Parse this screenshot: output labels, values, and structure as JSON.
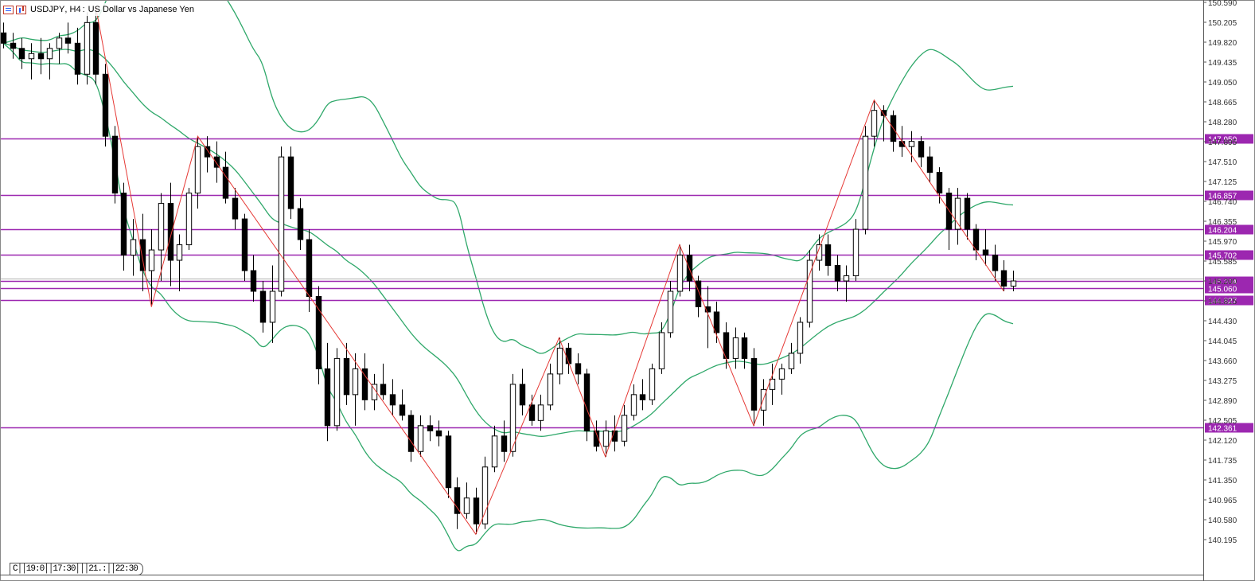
{
  "window": {
    "symbol": "USDJPY",
    "timeframe": "H4",
    "description": "US Dollar vs Japanese Yen",
    "time_readout": "C││19:0││17:30│││21.:││22:30"
  },
  "colors": {
    "background": "#ffffff",
    "bull_candle": "#ffffff",
    "bear_candle": "#000000",
    "bollinger": "#2fa86a",
    "level_line": "#9c27b0",
    "zigzag": "#e53935",
    "current_price_line": "#b0b0b0"
  },
  "icons": [
    "list-icon",
    "chart-icon"
  ],
  "chart_data": {
    "type": "candlestick",
    "title": "USDJPY, H4: US Dollar vs Japanese Yen",
    "ylim": [
      140.0,
      150.6
    ],
    "y_ticks": [
      "150.590",
      "150.205",
      "149.820",
      "149.435",
      "149.050",
      "148.665",
      "148.280",
      "147.895",
      "147.510",
      "147.125",
      "146.740",
      "146.355",
      "145.970",
      "145.585",
      "145.200",
      "144.815",
      "144.430",
      "144.045",
      "143.660",
      "143.275",
      "142.890",
      "142.505",
      "142.120",
      "141.735",
      "141.350",
      "140.965",
      "140.580",
      "140.195"
    ],
    "horizontal_levels": [
      "147.950",
      "146.857",
      "146.204",
      "145.702",
      "145.204",
      "145.060",
      "144.827",
      "142.361"
    ],
    "current_price": "145.204",
    "grid": false,
    "candles_approx": [
      {
        "o": 150.0,
        "h": 150.2,
        "l": 149.7,
        "c": 149.8
      },
      {
        "o": 149.8,
        "h": 150.0,
        "l": 149.5,
        "c": 149.7
      },
      {
        "o": 149.7,
        "h": 149.9,
        "l": 149.3,
        "c": 149.5
      },
      {
        "o": 149.5,
        "h": 149.8,
        "l": 149.1,
        "c": 149.6
      },
      {
        "o": 149.6,
        "h": 149.9,
        "l": 149.2,
        "c": 149.5
      },
      {
        "o": 149.5,
        "h": 149.8,
        "l": 149.1,
        "c": 149.7
      },
      {
        "o": 149.7,
        "h": 150.0,
        "l": 149.4,
        "c": 149.9
      },
      {
        "o": 149.9,
        "h": 150.2,
        "l": 149.6,
        "c": 149.8
      },
      {
        "o": 149.8,
        "h": 150.1,
        "l": 149.0,
        "c": 149.2
      },
      {
        "o": 149.2,
        "h": 150.4,
        "l": 149.0,
        "c": 150.2
      },
      {
        "o": 150.2,
        "h": 150.5,
        "l": 149.0,
        "c": 149.2
      },
      {
        "o": 149.2,
        "h": 149.4,
        "l": 147.8,
        "c": 148.0
      },
      {
        "o": 148.0,
        "h": 148.2,
        "l": 146.7,
        "c": 146.9
      },
      {
        "o": 146.9,
        "h": 147.1,
        "l": 145.4,
        "c": 145.7
      },
      {
        "o": 145.7,
        "h": 146.4,
        "l": 145.3,
        "c": 146.0
      },
      {
        "o": 146.0,
        "h": 146.5,
        "l": 145.0,
        "c": 145.4
      },
      {
        "o": 145.4,
        "h": 146.2,
        "l": 144.7,
        "c": 145.8
      },
      {
        "o": 145.8,
        "h": 146.9,
        "l": 145.2,
        "c": 146.7
      },
      {
        "o": 146.7,
        "h": 147.1,
        "l": 145.1,
        "c": 145.6
      },
      {
        "o": 145.6,
        "h": 146.1,
        "l": 145.0,
        "c": 145.9
      },
      {
        "o": 145.9,
        "h": 147.0,
        "l": 145.8,
        "c": 146.9
      },
      {
        "o": 146.9,
        "h": 148.0,
        "l": 146.6,
        "c": 147.8
      },
      {
        "o": 147.8,
        "h": 148.0,
        "l": 147.3,
        "c": 147.6
      },
      {
        "o": 147.6,
        "h": 147.9,
        "l": 147.1,
        "c": 147.4
      },
      {
        "o": 147.4,
        "h": 147.7,
        "l": 146.7,
        "c": 146.8
      },
      {
        "o": 146.8,
        "h": 147.0,
        "l": 146.2,
        "c": 146.4
      },
      {
        "o": 146.4,
        "h": 146.5,
        "l": 145.2,
        "c": 145.4
      },
      {
        "o": 145.4,
        "h": 145.7,
        "l": 144.8,
        "c": 145.0
      },
      {
        "o": 145.0,
        "h": 145.2,
        "l": 144.2,
        "c": 144.4
      },
      {
        "o": 144.4,
        "h": 145.5,
        "l": 144.0,
        "c": 145.0
      },
      {
        "o": 145.0,
        "h": 147.8,
        "l": 144.9,
        "c": 147.6
      },
      {
        "o": 147.6,
        "h": 147.8,
        "l": 146.4,
        "c": 146.6
      },
      {
        "o": 146.6,
        "h": 146.8,
        "l": 145.8,
        "c": 146.0
      },
      {
        "o": 146.0,
        "h": 146.2,
        "l": 144.6,
        "c": 144.9
      },
      {
        "o": 144.9,
        "h": 145.1,
        "l": 143.2,
        "c": 143.5
      },
      {
        "o": 143.5,
        "h": 144.0,
        "l": 142.1,
        "c": 142.4
      },
      {
        "o": 142.4,
        "h": 143.9,
        "l": 142.3,
        "c": 143.7
      },
      {
        "o": 143.7,
        "h": 144.0,
        "l": 142.8,
        "c": 143.0
      },
      {
        "o": 143.0,
        "h": 143.8,
        "l": 142.4,
        "c": 143.5
      },
      {
        "o": 143.5,
        "h": 143.8,
        "l": 142.7,
        "c": 142.9
      },
      {
        "o": 142.9,
        "h": 143.4,
        "l": 142.7,
        "c": 143.2
      },
      {
        "o": 143.2,
        "h": 143.6,
        "l": 142.9,
        "c": 143.0
      },
      {
        "o": 143.0,
        "h": 143.3,
        "l": 142.6,
        "c": 142.8
      },
      {
        "o": 142.8,
        "h": 143.1,
        "l": 142.5,
        "c": 142.6
      },
      {
        "o": 142.6,
        "h": 142.7,
        "l": 141.7,
        "c": 141.9
      },
      {
        "o": 141.9,
        "h": 142.6,
        "l": 141.8,
        "c": 142.4
      },
      {
        "o": 142.4,
        "h": 142.6,
        "l": 142.1,
        "c": 142.3
      },
      {
        "o": 142.3,
        "h": 142.5,
        "l": 142.0,
        "c": 142.2
      },
      {
        "o": 142.2,
        "h": 142.3,
        "l": 141.0,
        "c": 141.2
      },
      {
        "o": 141.2,
        "h": 141.4,
        "l": 140.4,
        "c": 140.7
      },
      {
        "o": 140.7,
        "h": 141.3,
        "l": 140.6,
        "c": 141.0
      },
      {
        "o": 141.0,
        "h": 141.2,
        "l": 140.3,
        "c": 140.5
      },
      {
        "o": 140.5,
        "h": 141.8,
        "l": 140.4,
        "c": 141.6
      },
      {
        "o": 141.6,
        "h": 142.4,
        "l": 141.5,
        "c": 142.2
      },
      {
        "o": 142.2,
        "h": 142.5,
        "l": 141.7,
        "c": 141.9
      },
      {
        "o": 141.9,
        "h": 143.4,
        "l": 141.8,
        "c": 143.2
      },
      {
        "o": 143.2,
        "h": 143.5,
        "l": 142.6,
        "c": 142.8
      },
      {
        "o": 142.8,
        "h": 143.0,
        "l": 142.4,
        "c": 142.5
      },
      {
        "o": 142.5,
        "h": 143.0,
        "l": 142.3,
        "c": 142.8
      },
      {
        "o": 142.8,
        "h": 143.6,
        "l": 142.7,
        "c": 143.4
      },
      {
        "o": 143.4,
        "h": 144.1,
        "l": 143.2,
        "c": 143.9
      },
      {
        "o": 143.9,
        "h": 144.0,
        "l": 143.4,
        "c": 143.6
      },
      {
        "o": 143.6,
        "h": 143.8,
        "l": 143.2,
        "c": 143.4
      },
      {
        "o": 143.4,
        "h": 143.5,
        "l": 142.1,
        "c": 142.3
      },
      {
        "o": 142.3,
        "h": 142.5,
        "l": 141.9,
        "c": 142.0
      },
      {
        "o": 142.0,
        "h": 142.5,
        "l": 141.8,
        "c": 142.3
      },
      {
        "o": 142.3,
        "h": 142.6,
        "l": 141.9,
        "c": 142.1
      },
      {
        "o": 142.1,
        "h": 142.8,
        "l": 142.0,
        "c": 142.6
      },
      {
        "o": 142.6,
        "h": 143.2,
        "l": 142.5,
        "c": 143.0
      },
      {
        "o": 143.0,
        "h": 143.3,
        "l": 142.7,
        "c": 142.9
      },
      {
        "o": 142.9,
        "h": 143.6,
        "l": 142.8,
        "c": 143.5
      },
      {
        "o": 143.5,
        "h": 144.4,
        "l": 143.4,
        "c": 144.2
      },
      {
        "o": 144.2,
        "h": 145.2,
        "l": 144.1,
        "c": 145.0
      },
      {
        "o": 145.0,
        "h": 145.9,
        "l": 144.9,
        "c": 145.7
      },
      {
        "o": 145.7,
        "h": 145.9,
        "l": 145.0,
        "c": 145.2
      },
      {
        "o": 145.2,
        "h": 145.3,
        "l": 144.5,
        "c": 144.7
      },
      {
        "o": 144.7,
        "h": 145.1,
        "l": 143.9,
        "c": 144.6
      },
      {
        "o": 144.6,
        "h": 144.8,
        "l": 144.0,
        "c": 144.2
      },
      {
        "o": 144.2,
        "h": 144.4,
        "l": 143.5,
        "c": 143.7
      },
      {
        "o": 143.7,
        "h": 144.3,
        "l": 143.5,
        "c": 144.1
      },
      {
        "o": 144.1,
        "h": 144.2,
        "l": 143.5,
        "c": 143.7
      },
      {
        "o": 143.7,
        "h": 143.9,
        "l": 142.4,
        "c": 142.7
      },
      {
        "o": 142.7,
        "h": 143.3,
        "l": 142.4,
        "c": 143.1
      },
      {
        "o": 143.1,
        "h": 143.6,
        "l": 142.8,
        "c": 143.3
      },
      {
        "o": 143.3,
        "h": 143.6,
        "l": 143.0,
        "c": 143.5
      },
      {
        "o": 143.5,
        "h": 144.0,
        "l": 143.4,
        "c": 143.8
      },
      {
        "o": 143.8,
        "h": 144.5,
        "l": 143.6,
        "c": 144.4
      },
      {
        "o": 144.4,
        "h": 145.8,
        "l": 144.3,
        "c": 145.6
      },
      {
        "o": 145.6,
        "h": 146.1,
        "l": 145.4,
        "c": 145.9
      },
      {
        "o": 145.9,
        "h": 146.1,
        "l": 145.3,
        "c": 145.5
      },
      {
        "o": 145.5,
        "h": 145.7,
        "l": 145.0,
        "c": 145.2
      },
      {
        "o": 145.2,
        "h": 145.5,
        "l": 144.8,
        "c": 145.3
      },
      {
        "o": 145.3,
        "h": 146.4,
        "l": 145.2,
        "c": 146.2
      },
      {
        "o": 146.2,
        "h": 148.2,
        "l": 146.1,
        "c": 148.0
      },
      {
        "o": 148.0,
        "h": 148.7,
        "l": 147.8,
        "c": 148.5
      },
      {
        "o": 148.5,
        "h": 148.6,
        "l": 147.9,
        "c": 148.4
      },
      {
        "o": 148.4,
        "h": 148.5,
        "l": 147.7,
        "c": 147.9
      },
      {
        "o": 147.9,
        "h": 148.2,
        "l": 147.6,
        "c": 147.8
      },
      {
        "o": 147.8,
        "h": 148.1,
        "l": 147.5,
        "c": 147.9
      },
      {
        "o": 147.9,
        "h": 148.0,
        "l": 147.4,
        "c": 147.6
      },
      {
        "o": 147.6,
        "h": 147.8,
        "l": 147.1,
        "c": 147.3
      },
      {
        "o": 147.3,
        "h": 147.4,
        "l": 146.7,
        "c": 146.9
      },
      {
        "o": 146.9,
        "h": 147.0,
        "l": 145.8,
        "c": 146.2
      },
      {
        "o": 146.2,
        "h": 147.0,
        "l": 145.9,
        "c": 146.8
      },
      {
        "o": 146.8,
        "h": 146.9,
        "l": 146.0,
        "c": 146.2
      },
      {
        "o": 146.2,
        "h": 146.3,
        "l": 145.6,
        "c": 145.8
      },
      {
        "o": 145.8,
        "h": 146.2,
        "l": 145.5,
        "c": 145.7
      },
      {
        "o": 145.7,
        "h": 145.9,
        "l": 145.2,
        "c": 145.4
      },
      {
        "o": 145.4,
        "h": 145.6,
        "l": 145.0,
        "c": 145.1
      },
      {
        "o": 145.1,
        "h": 145.4,
        "l": 145.0,
        "c": 145.2
      }
    ]
  }
}
